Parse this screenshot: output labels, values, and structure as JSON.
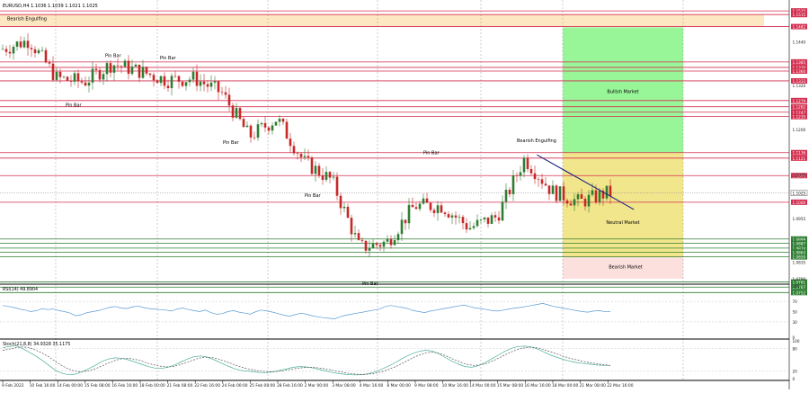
{
  "window": {
    "symbol_line": "EURUSD,H4  1.1036 1.1039 1.1021 1.1025"
  },
  "colors": {
    "bull_candle": "#2e7d32",
    "bear_candle": "#c62828",
    "resistance_line": "#d32f4f",
    "support_line": "#2e7d32",
    "bullish_zone": "#98f598",
    "neutral_zone": "#f2e68c",
    "bearish_zone": "#fbe0de",
    "engulf_band": "#fde7c3",
    "trendline": "#1a237e",
    "osc_line": "#5b9bd5",
    "stoch_main": "#4caf9a",
    "stoch_signal": "#555555"
  },
  "annotations": {
    "bearish_engulfing_top": "Bearish Engulfing",
    "bearish_engulfing_mid": "Bearish Engulfing",
    "pin_bar_labels": [
      "Pin Bar",
      "Pin Bar",
      "Pin Bar",
      "Pin Bar",
      "Pin Bar",
      "Pin Bar",
      "Pin Bar"
    ],
    "bullish_market": "Bullish Market",
    "neutral_market": "Neutral Market",
    "bearish_market": "Bearish Market"
  },
  "chart_data": [
    {
      "type": "line",
      "chart_style": "candlestick",
      "ylim": [
        1.0775,
        1.1555
      ],
      "price_axis_ticks": [
        "1.1440",
        "1.1320",
        "1.1200",
        "1.1075",
        "1.0955",
        "1.0835",
        "1.0790"
      ],
      "resistance_levels": [
        {
          "price": 1.1525,
          "label": "1.1525"
        },
        {
          "price": 1.1515,
          "label": "1.1515"
        },
        {
          "price": 1.1482,
          "label": "1.1482"
        },
        {
          "price": 1.1385,
          "label": "1.1385"
        },
        {
          "price": 1.137,
          "label": "1.1370"
        },
        {
          "price": 1.136,
          "label": "1.1360"
        },
        {
          "price": 1.1333,
          "label": "1.1333"
        },
        {
          "price": 1.1279,
          "label": "1.1279"
        },
        {
          "price": 1.1262,
          "label": "1.1262"
        },
        {
          "price": 1.1247,
          "label": "1.1247"
        },
        {
          "price": 1.1235,
          "label": "1.1235"
        },
        {
          "price": 1.1136,
          "label": "1.1136"
        },
        {
          "price": 1.1121,
          "label": "1.1121"
        },
        {
          "price": 1.1073,
          "label": "1.1073"
        },
        {
          "price": 1.1,
          "label": "1.1000"
        }
      ],
      "support_levels": [
        {
          "price": 1.0899,
          "label": "1.0899"
        },
        {
          "price": 1.0887,
          "label": "1.0887"
        },
        {
          "price": 1.0874,
          "label": "1.0874"
        },
        {
          "price": 1.0863,
          "label": "1.0863"
        },
        {
          "price": 1.085,
          "label": "1.0850"
        },
        {
          "price": 1.0781,
          "label": "1.0781"
        },
        {
          "price": 1.0767,
          "label": "1.0767"
        },
        {
          "price": 1.0752,
          "label": "1.0752"
        }
      ],
      "current_price": {
        "price": 1.1025,
        "label": "1.1025"
      },
      "zones": {
        "bullish": [
          1.1136,
          1.148
        ],
        "neutral": [
          1.085,
          1.1136
        ],
        "bearish": [
          1.079,
          1.085
        ],
        "engulfing_band": [
          1.1482,
          1.1515
        ]
      },
      "trendline": {
        "from_date": "16 Mar 16:00",
        "from_price": 1.113,
        "to_date": "22 Mar 16:00",
        "to_price": 1.098
      },
      "dates": [
        "9 Feb 2022",
        "10 Feb 16:00",
        "14 Feb 00:00",
        "15 Feb 08:00",
        "16 Feb 16:00",
        "18 Feb 00:00",
        "21 Feb 08:00",
        "22 Feb 16:00",
        "24 Feb 00:00",
        "25 Feb 08:00",
        "28 Feb 16:00",
        "2 Mar 00:00",
        "3 Mar 08:00",
        "4 Mar 16:00",
        "8 Mar 00:00",
        "9 Mar 08:00",
        "10 Mar 16:00",
        "14 Mar 00:00",
        "15 Mar 08:00",
        "16 Mar 16:00",
        "18 Mar 00:00",
        "21 Mar 08:00",
        "22 Mar 16:00"
      ],
      "candle_close_anchors": [
        1.142,
        1.1445,
        1.134,
        1.133,
        1.138,
        1.136,
        1.1335,
        1.134,
        1.13,
        1.118,
        1.123,
        1.111,
        1.106,
        1.0875,
        1.089,
        1.099,
        1.099,
        1.093,
        1.096,
        1.112,
        1.103,
        1.1,
        1.1025
      ]
    },
    {
      "type": "line",
      "title": "RSI(14) 49.8904",
      "ylim": [
        0,
        100
      ],
      "ticks": [
        "100",
        "70",
        "50",
        "30",
        "0"
      ],
      "values": [
        62,
        60,
        58,
        55,
        53,
        50,
        52,
        56,
        54,
        55,
        52,
        50,
        47,
        42,
        44,
        48,
        50,
        52,
        55,
        58,
        60,
        57,
        56,
        59,
        61,
        58,
        56,
        55,
        54,
        53,
        51,
        55,
        57,
        54,
        52,
        50,
        53,
        48,
        45,
        46,
        50,
        52,
        49,
        47,
        45,
        50,
        53,
        51,
        49,
        46,
        43,
        41,
        44,
        47,
        45,
        42,
        40,
        38,
        37,
        36,
        40,
        43,
        45,
        47,
        49,
        51,
        53,
        55,
        60,
        62,
        60,
        58,
        56,
        52,
        50,
        48,
        51,
        53,
        55,
        57,
        59,
        61,
        63,
        60,
        57,
        56,
        54,
        52,
        51,
        53,
        55,
        57,
        58,
        60,
        62,
        64,
        66,
        63,
        60,
        58,
        56,
        54,
        52,
        50,
        49,
        51,
        52,
        50,
        49.8904
      ]
    },
    {
      "type": "line",
      "title": "Stoch(21,8,8) 34.9328 35.1175",
      "ylim": [
        0,
        100
      ],
      "ticks": [
        "100",
        "80",
        "20",
        "0"
      ],
      "series": [
        {
          "values": [
            82,
            85,
            87,
            80,
            70,
            60,
            48,
            35,
            22,
            14,
            10,
            12,
            18,
            26,
            35,
            45,
            52,
            55,
            54,
            50,
            44,
            38,
            32,
            28,
            27,
            30,
            36,
            44,
            52,
            58,
            60,
            57,
            50,
            42,
            34,
            27,
            22,
            20,
            18,
            16,
            16,
            18,
            22,
            26,
            30,
            32,
            31,
            28,
            24,
            20,
            16,
            13,
            11,
            10,
            10,
            12,
            16,
            22,
            30,
            38,
            48,
            58,
            66,
            72,
            75,
            73,
            66,
            56,
            46,
            38,
            32,
            30,
            34,
            42,
            52,
            62,
            72,
            80,
            85,
            86,
            84,
            78,
            70,
            62,
            56,
            50,
            46,
            42,
            40,
            38,
            36,
            35,
            34.9328
          ]
        },
        {
          "values": [
            75,
            78,
            82,
            84,
            82,
            76,
            68,
            58,
            46,
            35,
            26,
            20,
            18,
            20,
            25,
            32,
            40,
            47,
            52,
            54,
            52,
            48,
            42,
            37,
            33,
            31,
            32,
            36,
            42,
            48,
            54,
            57,
            56,
            52,
            46,
            40,
            33,
            28,
            24,
            21,
            19,
            18,
            19,
            21,
            24,
            27,
            29,
            30,
            29,
            27,
            24,
            20,
            17,
            14,
            12,
            11,
            12,
            14,
            18,
            24,
            31,
            39,
            48,
            57,
            64,
            69,
            70,
            66,
            59,
            51,
            44,
            38,
            35,
            36,
            40,
            47,
            55,
            64,
            72,
            78,
            82,
            83,
            81,
            76,
            70,
            64,
            58,
            53,
            49,
            45,
            42,
            39,
            37,
            35.1175
          ]
        }
      ]
    }
  ]
}
